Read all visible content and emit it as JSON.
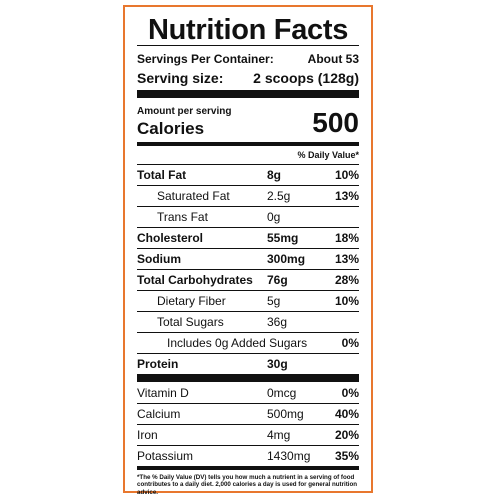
{
  "title": "Nutrition Facts",
  "servings_label": "Servings Per Container:",
  "servings_value": "About 53",
  "serving_size_label": "Serving size:",
  "serving_size_value": "2 scoops (128g)",
  "amount_per_serving": "Amount per serving",
  "calories_label": "Calories",
  "calories_value": "500",
  "dv_header": "% Daily Value*",
  "nutrients": [
    {
      "label": "Total Fat",
      "amount": "8g",
      "dv": "10%"
    },
    {
      "label": "Saturated Fat",
      "amount": "2.5g",
      "dv": "13%"
    },
    {
      "label": "Trans Fat",
      "amount": "0g",
      "dv": ""
    },
    {
      "label": "Cholesterol",
      "amount": "55mg",
      "dv": "18%"
    },
    {
      "label": "Sodium",
      "amount": "300mg",
      "dv": "13%"
    },
    {
      "label": "Total Carbohydrates",
      "amount": "76g",
      "dv": "28%"
    },
    {
      "label": "Dietary Fiber",
      "amount": "5g",
      "dv": "10%"
    },
    {
      "label": "Total Sugars",
      "amount": "36g",
      "dv": ""
    },
    {
      "label": "Includes 0g Added Sugars",
      "amount": "",
      "dv": "0%"
    },
    {
      "label": "Protein",
      "amount": "30g",
      "dv": ""
    }
  ],
  "vitamins": [
    {
      "label": "Vitamin D",
      "amount": "0mcg",
      "dv": "0%"
    },
    {
      "label": "Calcium",
      "amount": "500mg",
      "dv": "40%"
    },
    {
      "label": "Iron",
      "amount": "4mg",
      "dv": "20%"
    },
    {
      "label": "Potassium",
      "amount": "1430mg",
      "dv": "35%"
    }
  ],
  "footnote": "*The % Daily Value (DV) tells you how much a nutrient in a serving of food contributes to a daily diet. 2,000 calories a day is used for general nutrition advice.",
  "colors": {
    "border": "#e8772e",
    "text": "#111111"
  }
}
